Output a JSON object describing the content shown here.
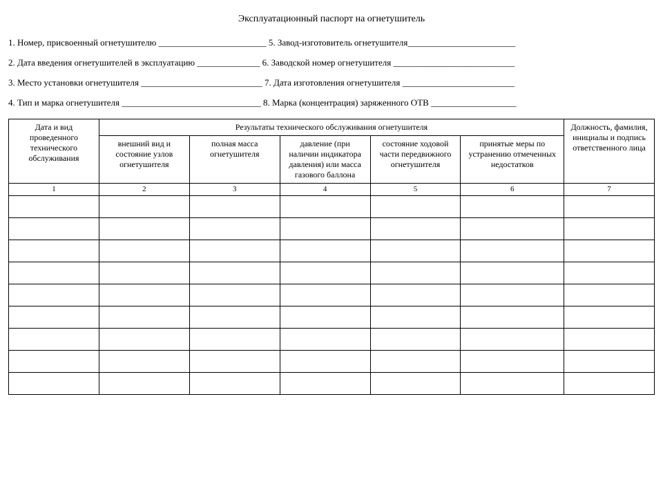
{
  "title": "Эксплуатационный паспорт на огнетушитель",
  "fields": {
    "line1": "1. Номер, присвоенный огнетушителю ________________________ 5. Завод-изготовитель огнетушителя________________________",
    "line2": "2. Дата введения огнетушителей в эксплуатацию ______________ 6. Заводской номер огнетушителя ___________________________",
    "line3": "3. Место установки огнетушителя ___________________________ 7. Дата изготовления огнетушителя _________________________",
    "line4": "4. Тип и марка огнетушителя _______________________________ 8. Марка (концентрация) заряженного ОТВ ___________________"
  },
  "table": {
    "header": {
      "col1": "Дата и вид проведенного технического обслуживания",
      "group": "Результаты технического обслуживания огнетушителя",
      "col2": "внешний вид и состояние узлов огнетушителя",
      "col3": "полная масса огнетушителя",
      "col4": "давление (при наличии индикатора давления) или масса газового баллона",
      "col5": "состояние ходовой части передвижного огнетушителя",
      "col6": "принятые меры по устранению отмеченных недостатков",
      "col7": "Должность, фамилия, инициалы и подпись ответственного лица"
    },
    "numbers": [
      "1",
      "2",
      "3",
      "4",
      "5",
      "6",
      "7"
    ],
    "empty_rows": 9
  },
  "style": {
    "font_family": "Times New Roman",
    "title_fontsize": 14,
    "body_fontsize": 13,
    "cell_fontsize": 12,
    "border_color": "#000000",
    "background": "#ffffff",
    "text_color": "#000000"
  }
}
